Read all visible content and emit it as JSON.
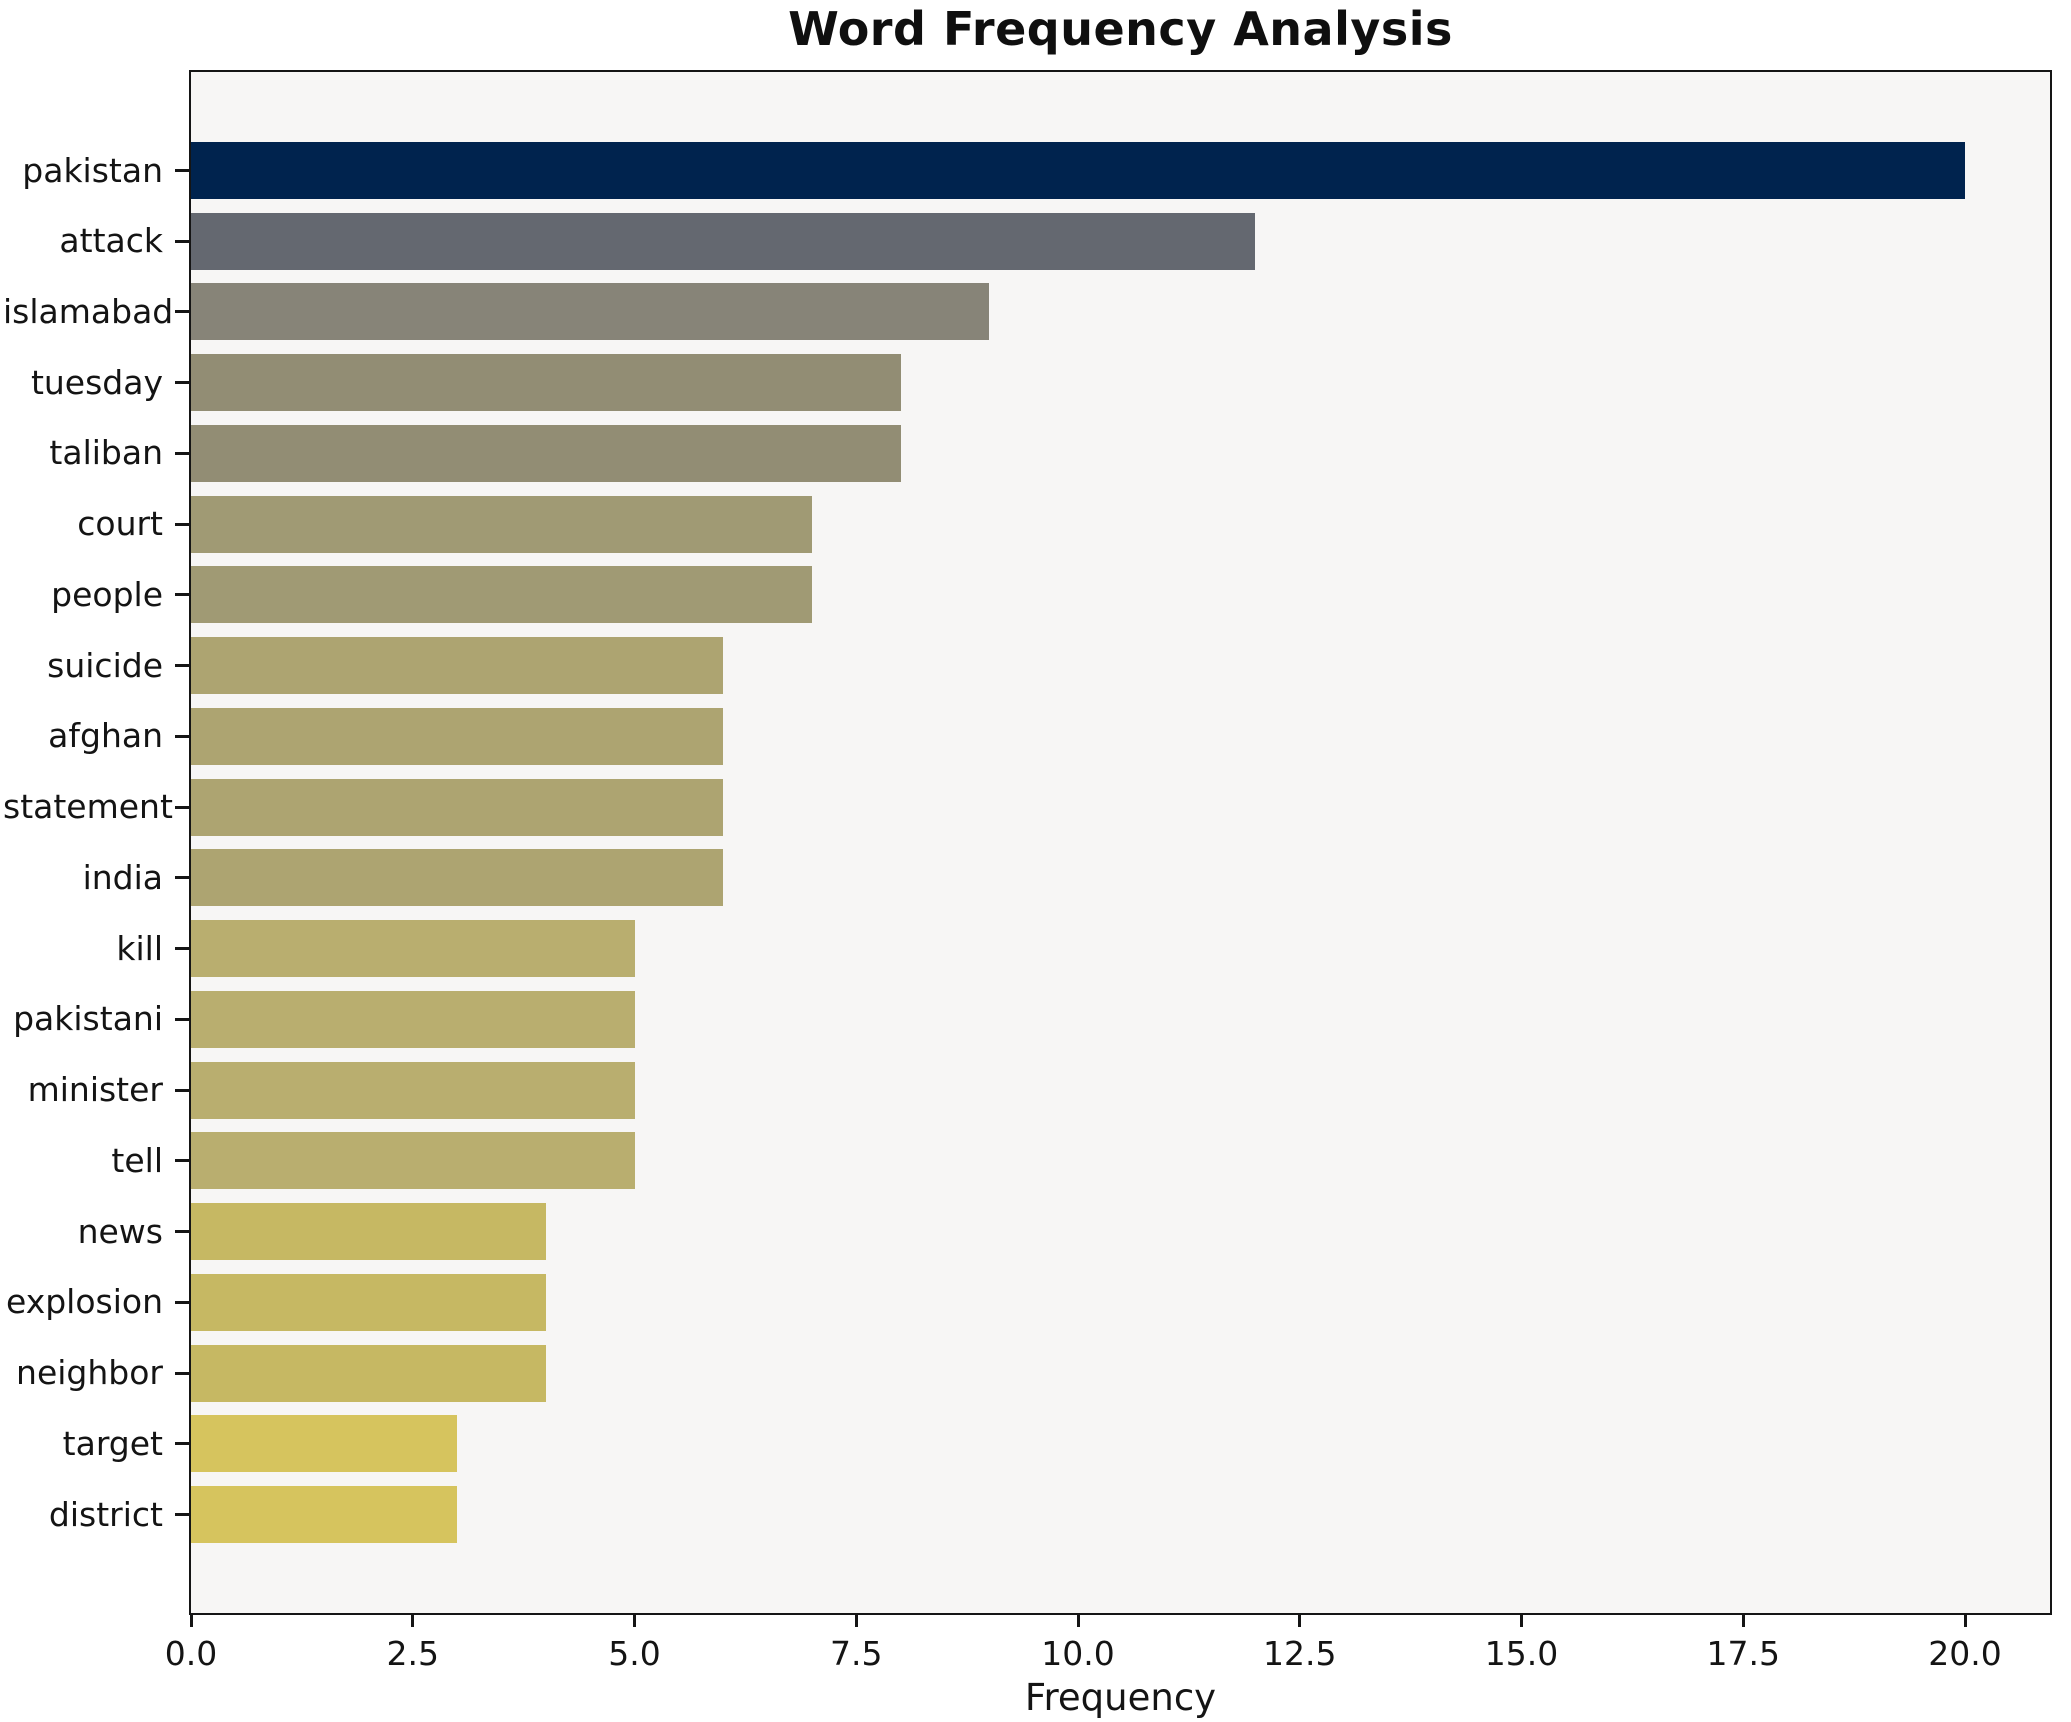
{
  "title": "Word Frequency Analysis",
  "x_axis_label": "Frequency",
  "chart_data": {
    "type": "bar",
    "orientation": "horizontal",
    "title": "Word Frequency Analysis",
    "xlabel": "Frequency",
    "ylabel": "",
    "xlim": [
      0,
      21
    ],
    "grid": false,
    "legend": false,
    "plot_background": "#f7f6f5",
    "figure_background": "#ffffff",
    "x_ticks": [
      "0.0",
      "2.5",
      "5.0",
      "7.5",
      "10.0",
      "12.5",
      "15.0",
      "17.5",
      "20.0"
    ],
    "x_tick_values": [
      0,
      2.5,
      5,
      7.5,
      10,
      12.5,
      15,
      17.5,
      20
    ],
    "categories": [
      "pakistan",
      "attack",
      "islamabad",
      "tuesday",
      "taliban",
      "court",
      "people",
      "suicide",
      "afghan",
      "statement",
      "india",
      "kill",
      "pakistani",
      "minister",
      "tell",
      "news",
      "explosion",
      "neighbor",
      "target",
      "district"
    ],
    "values": [
      20,
      12,
      9,
      8,
      8,
      7,
      7,
      6,
      6,
      6,
      6,
      5,
      5,
      5,
      5,
      4,
      4,
      4,
      3,
      3
    ],
    "bar_colors": [
      "#00234e",
      "#646870",
      "#878478",
      "#928d74",
      "#928d74",
      "#a09a74",
      "#a09a74",
      "#ada471",
      "#ada471",
      "#ada471",
      "#ada471",
      "#b9ae6f",
      "#b9ae6f",
      "#b9ae6f",
      "#b9ae6f",
      "#c6b863",
      "#c6b863",
      "#c6b863",
      "#d6c45e",
      "#d6c45e"
    ]
  }
}
